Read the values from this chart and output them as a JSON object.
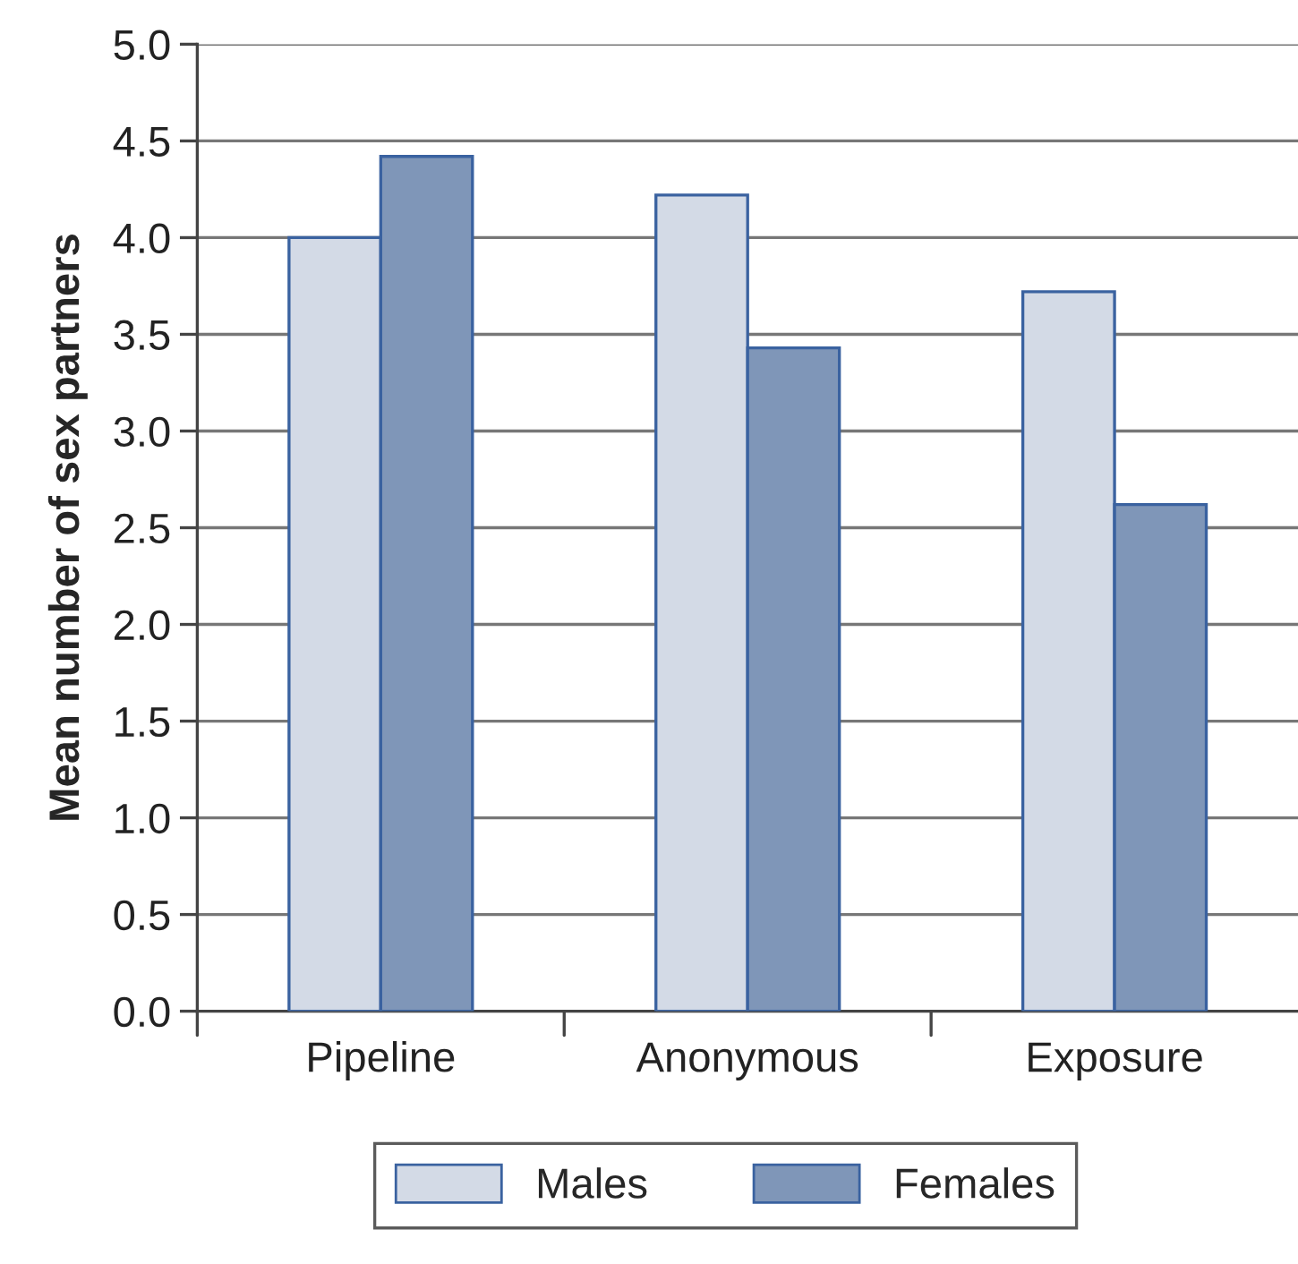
{
  "chart_data": {
    "type": "bar",
    "ylabel": "Mean number of sex partners",
    "categories": [
      "Pipeline",
      "Anonymous",
      "Exposure"
    ],
    "series": [
      {
        "name": "Males",
        "color": "#d3dae6",
        "values": [
          4.0,
          4.22,
          3.72
        ]
      },
      {
        "name": "Females",
        "color": "#7f96b8",
        "values": [
          4.42,
          3.43,
          2.62
        ]
      }
    ],
    "ylim": [
      0,
      5
    ],
    "yticks": [
      {
        "value": 0,
        "label": "0.0"
      },
      {
        "value": 0.5,
        "label": "0.5"
      },
      {
        "value": 1,
        "label": "1.0"
      },
      {
        "value": 1.5,
        "label": "1.5"
      },
      {
        "value": 2,
        "label": "2.0"
      },
      {
        "value": 2.5,
        "label": "2.5"
      },
      {
        "value": 3,
        "label": "3.0"
      },
      {
        "value": 3.5,
        "label": "3.5"
      },
      {
        "value": 4,
        "label": "4.0"
      },
      {
        "value": 4.5,
        "label": "4.5"
      },
      {
        "value": 5,
        "label": "5.0"
      }
    ],
    "grid": "y",
    "legend": "bottom"
  }
}
